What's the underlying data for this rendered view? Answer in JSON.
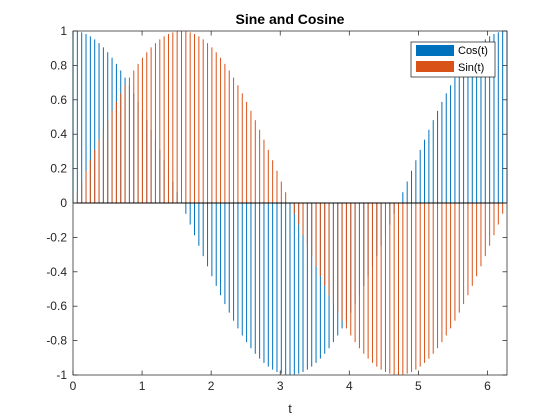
{
  "chart_data": {
    "type": "bar",
    "style": "vertical-lines (stem without markers)",
    "title": "Sine and Cosine",
    "xlabel": "t",
    "ylabel": "",
    "xlim": [
      0,
      6.2832
    ],
    "ylim": [
      -1,
      1
    ],
    "x_ticks": [
      0,
      1,
      2,
      3,
      4,
      5,
      6
    ],
    "y_ticks": [
      -1,
      -0.8,
      -0.6,
      -0.4,
      -0.2,
      0,
      0.2,
      0.4,
      0.6,
      0.8,
      1
    ],
    "x_tick_labels": [
      "0",
      "1",
      "2",
      "3",
      "4",
      "5",
      "6"
    ],
    "y_tick_labels": [
      "-1",
      "-0.8",
      "-0.6",
      "-0.4",
      "-0.2",
      "0",
      "0.2",
      "0.4",
      "0.6",
      "0.8",
      "1"
    ],
    "grid": false,
    "legend_position": "top-right",
    "x": [
      0,
      0.0628,
      0.1257,
      0.1885,
      0.2513,
      0.3142,
      0.377,
      0.4398,
      0.5027,
      0.5655,
      0.6283,
      0.6912,
      0.754,
      0.8168,
      0.8796,
      0.9425,
      1.0053,
      1.0681,
      1.131,
      1.1938,
      1.2566,
      1.3195,
      1.3823,
      1.4451,
      1.508,
      1.5708,
      1.6336,
      1.6965,
      1.7593,
      1.8221,
      1.885,
      1.9478,
      2.0106,
      2.0735,
      2.1363,
      2.1991,
      2.2619,
      2.3248,
      2.3876,
      2.4504,
      2.5133,
      2.5761,
      2.6389,
      2.7018,
      2.7646,
      2.8274,
      2.8903,
      2.9531,
      3.0159,
      3.0788,
      3.1416,
      3.2044,
      3.2673,
      3.3301,
      3.3929,
      3.4558,
      3.5186,
      3.5814,
      3.6442,
      3.7071,
      3.7699,
      3.8327,
      3.8956,
      3.9584,
      4.0212,
      4.0841,
      4.1469,
      4.2097,
      4.2726,
      4.3354,
      4.3982,
      4.4611,
      4.5239,
      4.5867,
      4.6496,
      4.7124,
      4.7752,
      4.8381,
      4.9009,
      4.9637,
      5.0265,
      5.0894,
      5.1522,
      5.215,
      5.2779,
      5.3407,
      5.4035,
      5.4664,
      5.5292,
      5.592,
      5.6549,
      5.7177,
      5.7805,
      5.8434,
      5.9062,
      5.969,
      6.0319,
      6.0947,
      6.1575,
      6.2204,
      6.2832
    ],
    "series": [
      {
        "name": "Cos(t)",
        "color": "#0072BD",
        "values": [
          1,
          0.998,
          0.9921,
          0.9823,
          0.9686,
          0.9511,
          0.9298,
          0.9048,
          0.8763,
          0.8443,
          0.809,
          0.7705,
          0.729,
          0.6845,
          0.6374,
          0.5878,
          0.5358,
          0.4818,
          0.4258,
          0.3681,
          0.309,
          0.2487,
          0.1874,
          0.1253,
          0.0628,
          0,
          -0.0628,
          -0.1253,
          -0.1874,
          -0.2487,
          -0.309,
          -0.3681,
          -0.4258,
          -0.4818,
          -0.5358,
          -0.5878,
          -0.6374,
          -0.6845,
          -0.729,
          -0.7705,
          -0.809,
          -0.8443,
          -0.8763,
          -0.9048,
          -0.9298,
          -0.9511,
          -0.9686,
          -0.9823,
          -0.9921,
          -0.998,
          -1,
          -0.998,
          -0.9921,
          -0.9823,
          -0.9686,
          -0.9511,
          -0.9298,
          -0.9048,
          -0.8763,
          -0.8443,
          -0.809,
          -0.7705,
          -0.729,
          -0.6845,
          -0.6374,
          -0.5878,
          -0.5358,
          -0.4818,
          -0.4258,
          -0.3681,
          -0.309,
          -0.2487,
          -0.1874,
          -0.1253,
          -0.0628,
          0,
          0.0628,
          0.1253,
          0.1874,
          0.2487,
          0.309,
          0.3681,
          0.4258,
          0.4818,
          0.5358,
          0.5878,
          0.6374,
          0.6845,
          0.729,
          0.7705,
          0.809,
          0.8443,
          0.8763,
          0.9048,
          0.9298,
          0.9511,
          0.9686,
          0.9823,
          0.9921,
          0.998,
          1
        ]
      },
      {
        "name": "Sin(t)",
        "color": "#D95319",
        "values": [
          0,
          0.0628,
          0.1253,
          0.1874,
          0.2487,
          0.309,
          0.3681,
          0.4258,
          0.4818,
          0.5358,
          0.5878,
          0.6374,
          0.6845,
          0.729,
          0.7705,
          0.809,
          0.8443,
          0.8763,
          0.9048,
          0.9298,
          0.9511,
          0.9686,
          0.9823,
          0.9921,
          0.998,
          1,
          0.998,
          0.9921,
          0.9823,
          0.9686,
          0.9511,
          0.9298,
          0.9048,
          0.8763,
          0.8443,
          0.809,
          0.7705,
          0.729,
          0.6845,
          0.6374,
          0.5878,
          0.5358,
          0.4818,
          0.4258,
          0.3681,
          0.309,
          0.2487,
          0.1874,
          0.1253,
          0.0628,
          0,
          -0.0628,
          -0.1253,
          -0.1874,
          -0.2487,
          -0.309,
          -0.3681,
          -0.4258,
          -0.4818,
          -0.5358,
          -0.5878,
          -0.6374,
          -0.6845,
          -0.729,
          -0.7705,
          -0.809,
          -0.8443,
          -0.8763,
          -0.9048,
          -0.9298,
          -0.9511,
          -0.9686,
          -0.9823,
          -0.9921,
          -0.998,
          -1,
          -0.998,
          -0.9921,
          -0.9823,
          -0.9686,
          -0.9511,
          -0.9298,
          -0.9048,
          -0.8763,
          -0.8443,
          -0.809,
          -0.7705,
          -0.729,
          -0.6845,
          -0.6374,
          -0.5878,
          -0.5358,
          -0.4818,
          -0.4258,
          -0.3681,
          -0.309,
          -0.2487,
          -0.1874,
          -0.1253,
          -0.0628,
          0
        ]
      }
    ]
  }
}
